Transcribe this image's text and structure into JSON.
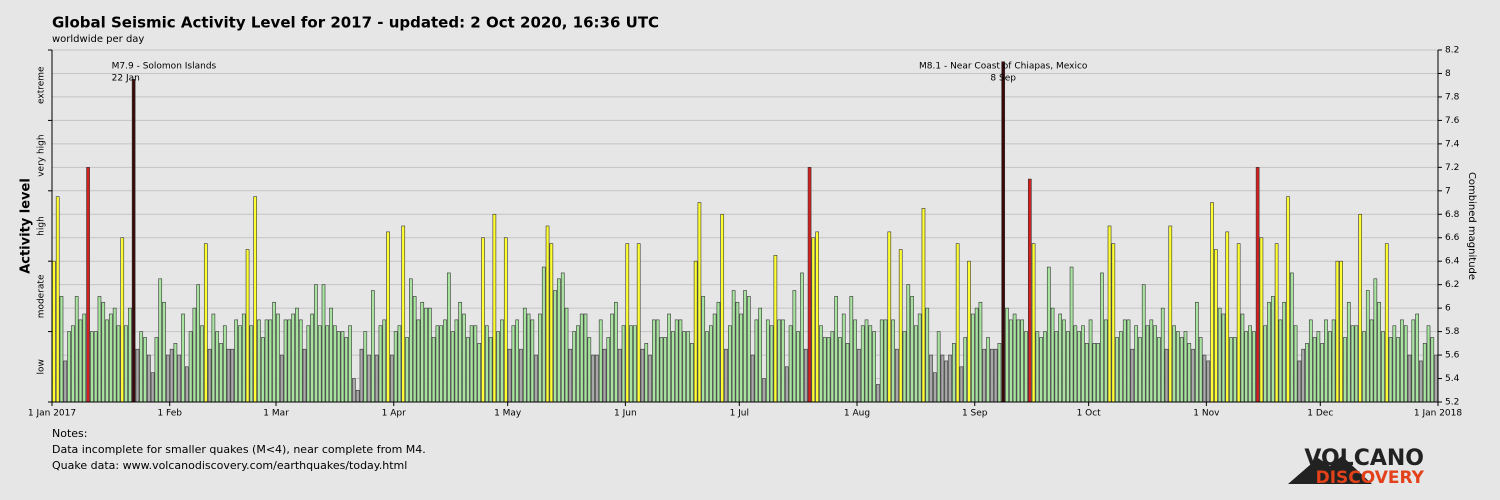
{
  "chart_data": {
    "type": "bar",
    "title": "Global Seismic Activity Level for 2017 - updated:  2 Oct 2020, 16:36 UTC",
    "subtitle": "worldwide per day",
    "y_label": "Activity level",
    "y2_label": "Combined magnitude",
    "xlim": [
      0,
      365
    ],
    "xticks": [
      {
        "value": 0,
        "label": "1 Jan 2017"
      },
      {
        "value": 31,
        "label": "1 Feb"
      },
      {
        "value": 59,
        "label": "1 Mar"
      },
      {
        "value": 90,
        "label": "1 Apr"
      },
      {
        "value": 120,
        "label": "1 May"
      },
      {
        "value": 151,
        "label": "1 Jun"
      },
      {
        "value": 181,
        "label": "1 Jul"
      },
      {
        "value": 212,
        "label": "1 Aug"
      },
      {
        "value": 243,
        "label": "1 Sep"
      },
      {
        "value": 273,
        "label": "1 Oct"
      },
      {
        "value": 304,
        "label": "1 Nov"
      },
      {
        "value": 334,
        "label": "1 Dec"
      },
      {
        "value": 365,
        "label": "1 Jan 2018"
      }
    ],
    "ylim": [
      5.2,
      8.2
    ],
    "yticks": [
      5.2,
      5.4,
      5.6,
      5.8,
      6,
      6.2,
      6.4,
      6.6,
      6.8,
      7,
      7.2,
      7.4,
      7.6,
      7.8,
      8,
      8.2
    ],
    "level_ticks": [
      5.2,
      5.8,
      6.4,
      7,
      7.6,
      8.2
    ],
    "levels": [
      "low",
      "moderate",
      "high",
      "very high",
      "extreme"
    ],
    "grid": true,
    "color_scale": [
      {
        "below": 5.7,
        "color": "#a9a9a9"
      },
      {
        "below": 6.4,
        "color": "#a8e4a0"
      },
      {
        "below": 7.0,
        "color": "#ffff33"
      },
      {
        "below": 7.6,
        "color": "#d42020"
      },
      {
        "below": 8.2,
        "color": "#3a0808"
      }
    ],
    "values": [
      6.4,
      6.95,
      6.1,
      5.55,
      5.8,
      5.85,
      6.1,
      5.9,
      5.95,
      7.2,
      5.8,
      5.8,
      6.1,
      6.05,
      5.9,
      5.95,
      6.0,
      5.85,
      6.6,
      5.85,
      6.0,
      7.95,
      5.65,
      5.8,
      5.75,
      5.6,
      5.45,
      5.75,
      6.25,
      6.05,
      5.6,
      5.65,
      5.7,
      5.6,
      5.95,
      5.5,
      5.8,
      6.0,
      6.2,
      5.85,
      6.55,
      5.65,
      5.95,
      5.8,
      5.7,
      5.85,
      5.65,
      5.65,
      5.9,
      5.85,
      5.95,
      6.5,
      5.85,
      6.95,
      5.9,
      5.75,
      5.9,
      5.9,
      6.05,
      5.95,
      5.6,
      5.9,
      5.9,
      5.95,
      6.0,
      5.9,
      5.65,
      5.85,
      5.95,
      6.2,
      5.85,
      6.2,
      5.85,
      6.0,
      5.85,
      5.8,
      5.8,
      5.75,
      5.85,
      5.4,
      5.3,
      5.65,
      5.8,
      5.6,
      6.15,
      5.6,
      5.85,
      5.9,
      6.65,
      5.6,
      5.8,
      5.85,
      6.7,
      5.75,
      6.25,
      6.1,
      5.9,
      6.05,
      6.0,
      6.0,
      5.75,
      5.85,
      5.85,
      5.9,
      6.3,
      5.8,
      5.9,
      6.05,
      5.95,
      5.75,
      5.85,
      5.85,
      5.7,
      6.6,
      5.85,
      5.75,
      6.8,
      5.8,
      5.9,
      6.6,
      5.65,
      5.85,
      5.9,
      5.65,
      6.0,
      5.95,
      5.9,
      5.6,
      5.95,
      6.35,
      6.7,
      6.55,
      6.15,
      6.25,
      6.3,
      6.0,
      5.65,
      5.8,
      5.85,
      5.95,
      5.95,
      5.75,
      5.6,
      5.6,
      5.9,
      5.65,
      5.75,
      5.95,
      6.05,
      5.65,
      5.85,
      6.55,
      5.85,
      5.85,
      6.55,
      5.65,
      5.7,
      5.6,
      5.9,
      5.9,
      5.75,
      5.75,
      5.95,
      5.8,
      5.9,
      5.9,
      5.8,
      5.8,
      5.7,
      6.4,
      6.9,
      6.1,
      5.8,
      5.85,
      5.95,
      6.05,
      6.8,
      5.65,
      5.85,
      6.15,
      6.05,
      5.95,
      6.15,
      6.1,
      5.6,
      5.9,
      6.0,
      5.4,
      5.9,
      5.85,
      6.45,
      5.9,
      5.9,
      5.5,
      5.85,
      6.15,
      5.8,
      6.3,
      5.65,
      7.2,
      6.6,
      6.65,
      5.85,
      5.75,
      5.75,
      5.8,
      6.1,
      5.75,
      5.95,
      5.7,
      6.1,
      5.9,
      5.65,
      5.85,
      5.9,
      5.85,
      5.8,
      5.35,
      5.9,
      5.9,
      6.65,
      5.9,
      5.65,
      6.5,
      5.8,
      6.2,
      6.1,
      5.85,
      5.95,
      6.85,
      6.0,
      5.6,
      5.45,
      5.8,
      5.6,
      5.55,
      5.6,
      5.7,
      6.55,
      5.5,
      5.75,
      6.4,
      5.95,
      6.0,
      6.05,
      5.65,
      5.75,
      5.65,
      5.65,
      5.7,
      8.1,
      6.0,
      5.9,
      5.95,
      5.9,
      5.9,
      5.8,
      7.1,
      6.55,
      5.8,
      5.75,
      5.8,
      6.35,
      6.0,
      5.8,
      5.95,
      5.9,
      5.8,
      6.35,
      5.85,
      5.8,
      5.85,
      5.7,
      5.9,
      5.7,
      5.7,
      6.3,
      5.9,
      6.7,
      6.55,
      5.75,
      5.8,
      5.9,
      5.9,
      5.65,
      5.85,
      5.75,
      6.2,
      5.85,
      5.9,
      5.85,
      5.75,
      6.0,
      5.65,
      6.7,
      5.85,
      5.8,
      5.75,
      5.8,
      5.7,
      5.65,
      6.05,
      5.75,
      5.6,
      5.55,
      6.9,
      6.5,
      6.0,
      5.95,
      6.65,
      5.75,
      5.75,
      6.55,
      5.95,
      5.8,
      5.85,
      5.8,
      7.2,
      6.6,
      5.85,
      6.05,
      6.1,
      6.55,
      5.9,
      6.05,
      6.95,
      6.3,
      5.85,
      5.55,
      5.65,
      5.7,
      5.9,
      5.75,
      5.8,
      5.7,
      5.9,
      5.8,
      5.9,
      6.4,
      6.4,
      5.75,
      6.05,
      5.85,
      5.85,
      6.8,
      5.8,
      6.15,
      5.9,
      6.25,
      6.05,
      5.8,
      6.55,
      5.75,
      5.85,
      5.75,
      5.9,
      5.85,
      5.6,
      5.9,
      5.95,
      5.55,
      5.7,
      5.85,
      5.75,
      5.6
    ],
    "annotations": [
      [
        "M7.9 - Solomon Islands",
        "22 Jan"
      ],
      [
        "M8.1 - Near Coast of Chiapas, Mexico",
        "8 Sep"
      ]
    ],
    "notes": [
      "Notes:",
      "Data incomplete for smaller quakes (M<4), near complete from M4.",
      "Quake data: www.volcanodiscovery.com/earthquakes/today.html"
    ],
    "logo": [
      "VOLCANO",
      "DISCOVERY"
    ]
  }
}
